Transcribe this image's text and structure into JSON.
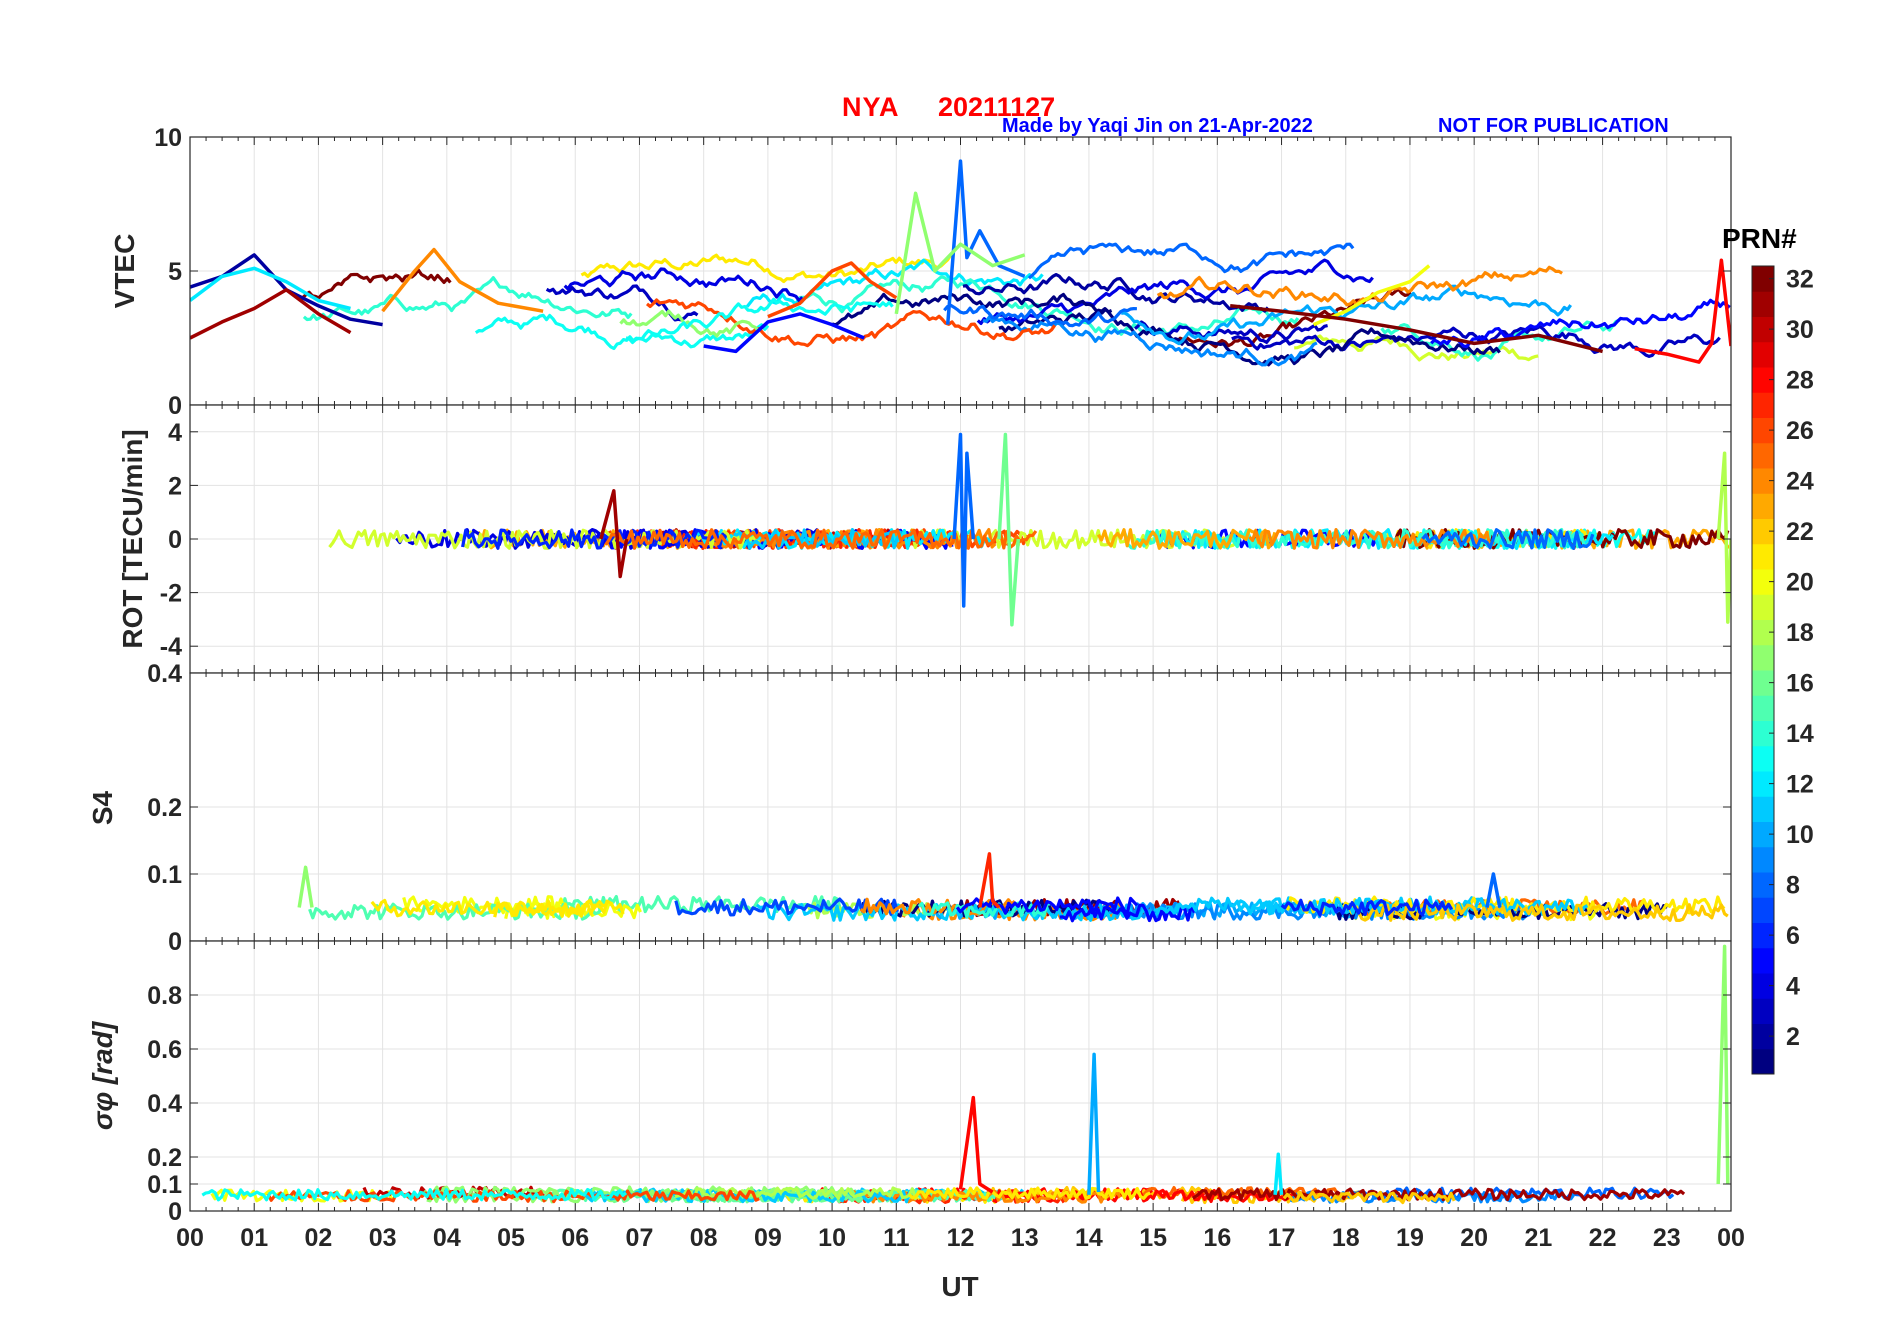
{
  "header": {
    "station": "NYA",
    "date": "20211127",
    "credit": "Made by Yaqi Jin on 21-Apr-2022",
    "notice": "NOT FOR PUBLICATION"
  },
  "chart_data": {
    "type": "line",
    "xlabel": "UT",
    "x_ticks": [
      "00",
      "01",
      "02",
      "03",
      "04",
      "05",
      "06",
      "07",
      "08",
      "09",
      "10",
      "11",
      "12",
      "13",
      "14",
      "15",
      "16",
      "17",
      "18",
      "19",
      "20",
      "21",
      "22",
      "23",
      "00"
    ],
    "xlim": [
      0,
      24
    ],
    "colorbar": {
      "label": "PRN#",
      "range": [
        1,
        32
      ],
      "ticks": [
        2,
        4,
        6,
        8,
        10,
        12,
        14,
        16,
        18,
        20,
        22,
        24,
        26,
        28,
        30,
        32
      ],
      "colormap": "jet"
    },
    "panels": [
      {
        "name": "VTEC",
        "ylabel": "VTEC",
        "ylim": [
          0,
          10
        ],
        "yticks": [
          0,
          5,
          10
        ],
        "series": [
          {
            "prn": 2,
            "x": [
              0,
              0.5,
              1,
              1.5,
              2,
              2.5,
              3
            ],
            "y": [
              4.4,
              4.8,
              5.6,
              4.3,
              3.7,
              3.2,
              3.0
            ]
          },
          {
            "prn": 5,
            "x": [
              8,
              8.5,
              9,
              9.5,
              10,
              10.5
            ],
            "y": [
              2.2,
              2.0,
              3.1,
              3.4,
              3.0,
              2.5
            ]
          },
          {
            "prn": 8,
            "x": [
              11.8,
              12.0,
              12.1,
              12.3,
              12.6,
              13.0
            ],
            "y": [
              3.0,
              9.1,
              5.5,
              6.5,
              5.2,
              4.8
            ]
          },
          {
            "prn": 12,
            "x": [
              0,
              0.5,
              1,
              1.5,
              2,
              2.5
            ],
            "y": [
              3.9,
              4.8,
              5.1,
              4.6,
              3.9,
              3.6
            ]
          },
          {
            "prn": 17,
            "x": [
              11.0,
              11.3,
              11.6,
              12.0,
              12.5,
              13.0
            ],
            "y": [
              3.4,
              7.9,
              5.0,
              6.0,
              5.2,
              5.6
            ]
          },
          {
            "prn": 20,
            "x": [
              17.5,
              18.0,
              18.5,
              19.0,
              19.3
            ],
            "y": [
              3.0,
              3.5,
              4.2,
              4.6,
              5.2
            ]
          },
          {
            "prn": 24,
            "x": [
              3.0,
              3.5,
              3.8,
              4.2,
              4.8,
              5.5
            ],
            "y": [
              3.5,
              5.0,
              5.8,
              4.6,
              3.8,
              3.5
            ]
          },
          {
            "prn": 26,
            "x": [
              9.0,
              9.5,
              10.0,
              10.3,
              10.6,
              11.0
            ],
            "y": [
              3.3,
              3.8,
              5.0,
              5.3,
              4.6,
              4.0
            ]
          },
          {
            "prn": 28,
            "x": [
              22.5,
              23.0,
              23.5,
              23.7,
              23.85,
              24.0
            ],
            "y": [
              2.1,
              1.9,
              1.6,
              2.3,
              5.4,
              2.2
            ]
          },
          {
            "prn": 31,
            "x": [
              0,
              0.5,
              1,
              1.5,
              2,
              2.5
            ],
            "y": [
              2.5,
              3.1,
              3.6,
              4.3,
              3.4,
              2.7
            ]
          },
          {
            "prn": 32,
            "x": [
              16.2,
              17.0,
              18.0,
              19.0,
              20.0,
              21.0,
              22.0
            ],
            "y": [
              3.7,
              3.5,
              3.2,
              2.8,
              2.3,
              2.6,
              2.0
            ]
          }
        ]
      },
      {
        "name": "ROT",
        "ylabel": "ROT [TECU/min]",
        "ylim": [
          -5,
          5
        ],
        "yticks": [
          -4,
          -2,
          0,
          2,
          4
        ],
        "series": [
          {
            "prn": 8,
            "x": [
              11.9,
              12.0,
              12.05,
              12.1,
              12.2
            ],
            "y": [
              0,
              3.9,
              -2.5,
              3.2,
              0
            ]
          },
          {
            "prn": 16,
            "x": [
              12.6,
              12.7,
              12.8,
              12.9
            ],
            "y": [
              0,
              3.9,
              -3.2,
              0
            ]
          },
          {
            "prn": 31,
            "x": [
              6.4,
              6.6,
              6.7,
              6.8
            ],
            "y": [
              0,
              1.8,
              -1.4,
              0
            ]
          },
          {
            "prn": 18,
            "x": [
              23.8,
              23.9,
              23.95,
              24.0
            ],
            "y": [
              0,
              3.2,
              -3.1,
              0
            ]
          }
        ]
      },
      {
        "name": "S4",
        "ylabel": "S4",
        "ylim": [
          0,
          0.4
        ],
        "yticks": [
          0,
          0.1,
          0.2,
          0.4
        ],
        "series": [
          {
            "prn": 27,
            "x": [
              12.3,
              12.45,
              12.5,
              12.6
            ],
            "y": [
              0.05,
              0.13,
              0.06,
              0.05
            ]
          },
          {
            "prn": 8,
            "x": [
              20.2,
              20.3,
              20.4
            ],
            "y": [
              0.05,
              0.1,
              0.05
            ]
          },
          {
            "prn": 17,
            "x": [
              1.7,
              1.8,
              1.9
            ],
            "y": [
              0.05,
              0.11,
              0.05
            ]
          }
        ]
      },
      {
        "name": "sigma_phi",
        "ylabel": "σφ [rad]",
        "ylim": [
          0,
          1.0
        ],
        "yticks": [
          0,
          0.1,
          0.2,
          0.4,
          0.6,
          0.8
        ],
        "series": [
          {
            "prn": 10,
            "x": [
              14.0,
              14.08,
              14.15
            ],
            "y": [
              0.06,
              0.58,
              0.07
            ]
          },
          {
            "prn": 28,
            "x": [
              12.0,
              12.2,
              12.3,
              12.5
            ],
            "y": [
              0.08,
              0.42,
              0.1,
              0.07
            ]
          },
          {
            "prn": 17,
            "x": [
              23.8,
              23.9,
              23.95
            ],
            "y": [
              0.1,
              0.98,
              0.1
            ]
          },
          {
            "prn": 12,
            "x": [
              16.9,
              16.95,
              17.0
            ],
            "y": [
              0.06,
              0.21,
              0.06
            ]
          }
        ]
      }
    ]
  }
}
